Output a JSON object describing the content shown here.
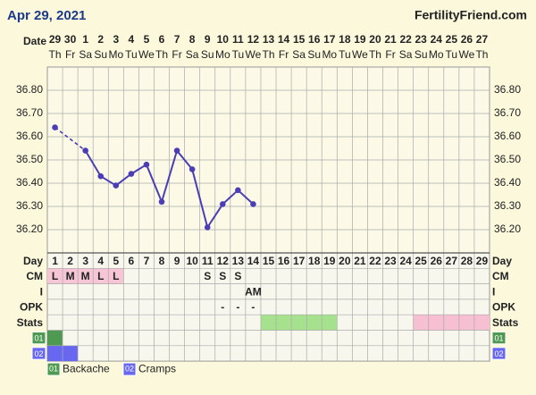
{
  "header": {
    "date": "Apr 29, 2021",
    "site": "FertilityFriend.com"
  },
  "chart_data": {
    "type": "line",
    "date_label": "Date",
    "categories": [
      "29",
      "30",
      "1",
      "2",
      "3",
      "4",
      "5",
      "6",
      "7",
      "8",
      "9",
      "10",
      "11",
      "12",
      "13",
      "14",
      "15",
      "16",
      "17",
      "18",
      "19",
      "20",
      "21",
      "22",
      "23",
      "24",
      "25",
      "26",
      "27"
    ],
    "weekdays": [
      "Th",
      "Fr",
      "Sa",
      "Su",
      "Mo",
      "Tu",
      "We",
      "Th",
      "Fr",
      "Sa",
      "Su",
      "Mo",
      "Tu",
      "We",
      "Th",
      "Fr",
      "Sa",
      "Su",
      "Mo",
      "Tu",
      "We",
      "Th",
      "Fr",
      "Sa",
      "Su",
      "Mo",
      "Tu",
      "We",
      "Th"
    ],
    "series": [
      {
        "color": "#4b3db5",
        "values": [
          36.64,
          null,
          36.54,
          36.43,
          36.39,
          36.44,
          36.48,
          36.32,
          36.54,
          36.46,
          36.21,
          36.31,
          36.37,
          36.31,
          null,
          null,
          null,
          null,
          null,
          null,
          null,
          null,
          null,
          null,
          null,
          null,
          null,
          null,
          null
        ]
      }
    ],
    "gap_line": "dashed",
    "ylim": [
      36.1,
      36.9
    ],
    "yticks": [
      {
        "value": 36.2,
        "label": "36.20"
      },
      {
        "value": 36.3,
        "label": "36.30"
      },
      {
        "value": 36.4,
        "label": "36.40"
      },
      {
        "value": 36.5,
        "label": "36.50"
      },
      {
        "value": 36.6,
        "label": "36.60"
      },
      {
        "value": 36.7,
        "label": "36.70"
      },
      {
        "value": 36.8,
        "label": "36.80"
      }
    ],
    "grid": true,
    "rows": [
      {
        "label": "Day",
        "values": [
          "1",
          "2",
          "3",
          "4",
          "5",
          "6",
          "7",
          "8",
          "9",
          "10",
          "11",
          "12",
          "13",
          "14",
          "15",
          "16",
          "17",
          "18",
          "19",
          "20",
          "21",
          "22",
          "23",
          "24",
          "25",
          "26",
          "27",
          "28",
          "29"
        ]
      },
      {
        "label": "CM",
        "values": [
          "L",
          "M",
          "M",
          "L",
          "L",
          null,
          null,
          null,
          null,
          null,
          "S",
          "S",
          "S",
          null,
          null,
          null,
          null,
          null,
          null,
          null,
          null,
          null,
          null,
          null,
          null,
          null,
          null,
          null,
          null
        ],
        "fill": {
          "color": "#f6c6d6",
          "days": [
            1,
            2,
            3,
            4,
            5
          ]
        }
      },
      {
        "label": "I",
        "values": [
          null,
          null,
          null,
          null,
          null,
          null,
          null,
          null,
          null,
          null,
          null,
          null,
          null,
          "AM",
          null,
          null,
          null,
          null,
          null,
          null,
          null,
          null,
          null,
          null,
          null,
          null,
          null,
          null,
          null
        ]
      },
      {
        "label": "OPK",
        "values": [
          null,
          null,
          null,
          null,
          null,
          null,
          null,
          null,
          null,
          null,
          null,
          "-",
          "-",
          "-",
          null,
          null,
          null,
          null,
          null,
          null,
          null,
          null,
          null,
          null,
          null,
          null,
          null,
          null,
          null
        ]
      },
      {
        "label": "Stats",
        "values": [],
        "fills": [
          {
            "color": "#a6e28e",
            "days": [
              15,
              16,
              17,
              18,
              19
            ]
          },
          {
            "color": "#f6bfd2",
            "days": [
              25,
              26,
              27,
              28,
              29
            ]
          }
        ]
      }
    ],
    "symptoms": [
      {
        "code": "01",
        "name": "Backache",
        "color": "#4f9a52",
        "days": [
          1
        ]
      },
      {
        "code": "02",
        "name": "Cramps",
        "color": "#6767f0",
        "days": [
          1,
          2
        ]
      }
    ]
  }
}
